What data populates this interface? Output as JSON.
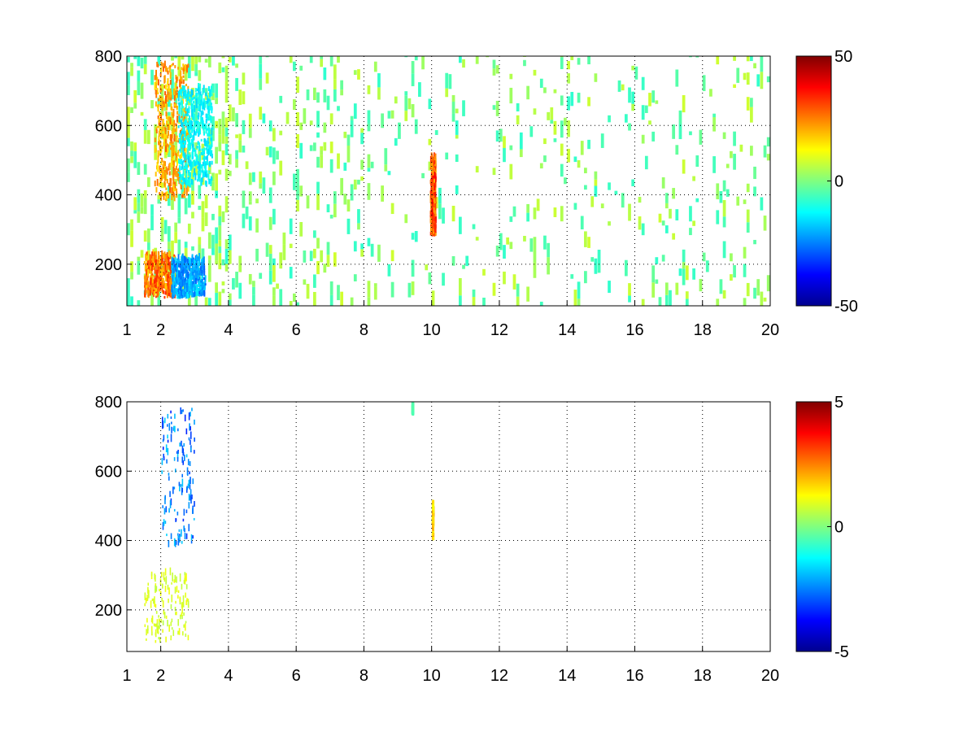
{
  "chart_data": [
    {
      "type": "heatmap",
      "title": "",
      "xlabel": "",
      "ylabel": "",
      "xlim": [
        1,
        20
      ],
      "ylim": [
        80,
        800
      ],
      "x_ticks": [
        1,
        2,
        4,
        6,
        8,
        10,
        12,
        14,
        16,
        18,
        20
      ],
      "x_tick_labels": [
        "1",
        "2",
        "4",
        "6",
        "8",
        "10",
        "12",
        "14",
        "16",
        "18",
        "20"
      ],
      "y_ticks": [
        200,
        400,
        600,
        800
      ],
      "y_tick_labels": [
        "200",
        "400",
        "600",
        "800"
      ],
      "grid": true,
      "colormap": "jet",
      "colorbar": {
        "min": -50,
        "max": 50,
        "ticks": [
          50,
          0,
          -50
        ],
        "tick_labels": [
          "50",
          "0",
          "-50"
        ]
      },
      "features": [
        {
          "x": [
            1.8,
            2.8
          ],
          "y": [
            380,
            780
          ],
          "value": 25
        },
        {
          "x": [
            2.5,
            3.5
          ],
          "y": [
            420,
            700
          ],
          "value": -15
        },
        {
          "x": [
            1.5,
            2.4
          ],
          "y": [
            100,
            220
          ],
          "value": 30
        },
        {
          "x": [
            2.3,
            3.3
          ],
          "y": [
            100,
            210
          ],
          "value": -25
        },
        {
          "x": [
            9.95,
            10.1
          ],
          "y": [
            280,
            500
          ],
          "value": 35
        },
        {
          "x": [
            1.0,
            20.0
          ],
          "y": [
            80,
            800
          ],
          "value": 5,
          "note": "scattered weak values"
        }
      ]
    },
    {
      "type": "heatmap",
      "title": "",
      "xlabel": "",
      "ylabel": "",
      "xlim": [
        1,
        20
      ],
      "ylim": [
        80,
        800
      ],
      "x_ticks": [
        1,
        2,
        4,
        6,
        8,
        10,
        12,
        14,
        16,
        18,
        20
      ],
      "x_tick_labels": [
        "1",
        "2",
        "4",
        "6",
        "8",
        "10",
        "12",
        "14",
        "16",
        "18",
        "20"
      ],
      "y_ticks": [
        200,
        400,
        600,
        800
      ],
      "y_tick_labels": [
        "200",
        "400",
        "600",
        "800"
      ],
      "grid": true,
      "colormap": "jet",
      "colorbar": {
        "min": -5,
        "max": 5,
        "ticks": [
          5,
          0,
          -5
        ],
        "tick_labels": [
          "5",
          "0",
          "-5"
        ]
      },
      "features": [
        {
          "x": [
            2.0,
            3.0
          ],
          "y": [
            380,
            780
          ],
          "value": -3
        },
        {
          "x": [
            1.5,
            2.8
          ],
          "y": [
            100,
            300
          ],
          "value": 1
        },
        {
          "x": [
            10.0,
            10.05
          ],
          "y": [
            400,
            500
          ],
          "value": 2
        },
        {
          "x": [
            9.4,
            9.45
          ],
          "y": [
            760,
            790
          ],
          "value": -0.5
        }
      ]
    }
  ]
}
